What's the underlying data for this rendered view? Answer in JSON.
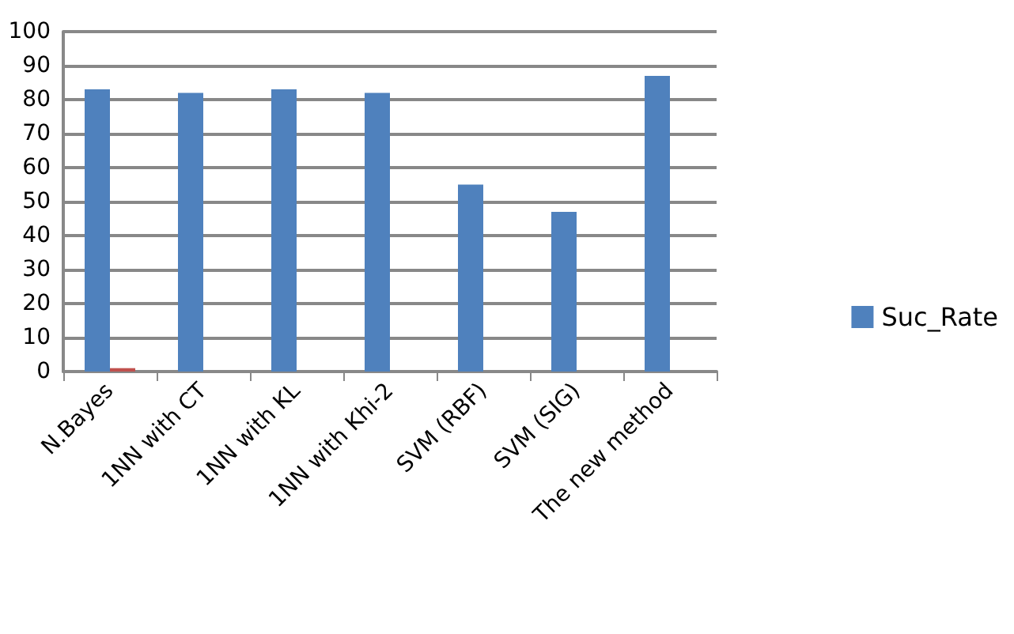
{
  "chart_data": {
    "type": "bar",
    "categories": [
      "N.Bayes",
      "1NN with CT",
      "1NN with KL",
      "1NN with Khi-2",
      "SVM (RBF)",
      "SVM (SIG)",
      "The new method"
    ],
    "series": [
      {
        "name": "Suc_Rate",
        "color": "#4f81bd",
        "values": [
          83,
          82,
          83,
          82,
          55,
          47,
          87
        ]
      },
      {
        "color": "#c0504d",
        "values": [
          1,
          null,
          null,
          null,
          null,
          null,
          null
        ]
      }
    ],
    "ylim": [
      0,
      100
    ],
    "yticks": [
      0,
      10,
      20,
      30,
      40,
      50,
      60,
      70,
      80,
      90,
      100
    ],
    "grid": "y",
    "legend": "right"
  }
}
